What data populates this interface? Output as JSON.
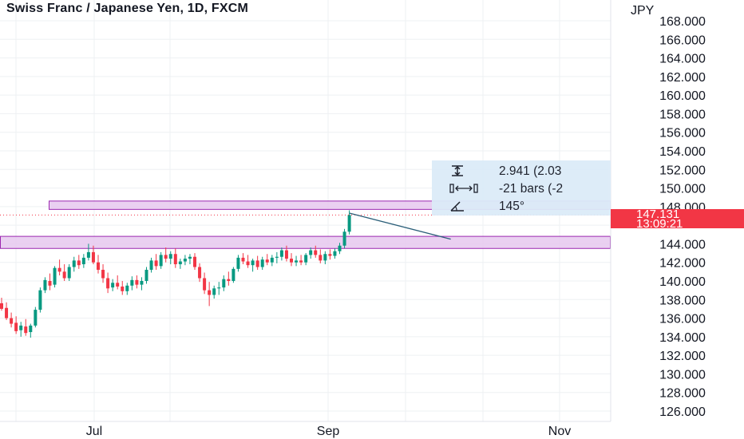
{
  "header": {
    "title": "Swiss Franc / Japanese Yen, 1D, FXCM"
  },
  "price_axis": {
    "currency": "JPY",
    "ticks": [
      "168.000",
      "166.000",
      "164.000",
      "162.000",
      "160.000",
      "158.000",
      "156.000",
      "154.000",
      "152.000",
      "150.000",
      "148.000",
      "144.000",
      "142.000",
      "140.000",
      "138.000",
      "136.000",
      "134.000",
      "132.000",
      "130.000",
      "128.000",
      "126.000"
    ]
  },
  "time_axis": {
    "labels": [
      "Jul",
      "Sep",
      "Nov"
    ]
  },
  "ruler": {
    "price_change": "2.941 (2.03",
    "bars": "-21 bars (-2",
    "angle": "145°"
  },
  "last_price": {
    "price": "147.131",
    "countdown": "13:09:21"
  },
  "colors": {
    "up": "#089981",
    "down": "#f23645",
    "zone_fill": "#e6c8ef",
    "zone_border": "#9c27b0",
    "trendline": "#2a5e78",
    "price_line": "#f23645",
    "grid": "#eef0f3"
  },
  "chart_data": {
    "type": "candlestick",
    "symbol": "CHFJPY",
    "interval": "1D",
    "ylim": [
      125,
      169
    ],
    "zones": [
      {
        "from": 147.7,
        "to": 148.6
      },
      {
        "from": 143.5,
        "to": 144.8
      }
    ],
    "trendline": {
      "from": 147.3,
      "to": 144.5,
      "bars": -21
    },
    "candles": [
      {
        "o": 137.6,
        "h": 138.2,
        "l": 136.8,
        "c": 137.0
      },
      {
        "o": 137.1,
        "h": 137.7,
        "l": 135.8,
        "c": 136.0
      },
      {
        "o": 136.0,
        "h": 136.6,
        "l": 135.0,
        "c": 135.4
      },
      {
        "o": 135.5,
        "h": 136.2,
        "l": 134.3,
        "c": 134.6
      },
      {
        "o": 134.7,
        "h": 135.6,
        "l": 134.0,
        "c": 135.2
      },
      {
        "o": 135.1,
        "h": 135.9,
        "l": 134.1,
        "c": 134.4
      },
      {
        "o": 134.5,
        "h": 135.4,
        "l": 133.9,
        "c": 135.2
      },
      {
        "o": 135.2,
        "h": 137.2,
        "l": 135.0,
        "c": 136.9
      },
      {
        "o": 136.9,
        "h": 139.3,
        "l": 136.6,
        "c": 139.0
      },
      {
        "o": 139.0,
        "h": 140.4,
        "l": 138.7,
        "c": 140.1
      },
      {
        "o": 140.0,
        "h": 140.8,
        "l": 139.0,
        "c": 139.5
      },
      {
        "o": 139.6,
        "h": 141.6,
        "l": 139.3,
        "c": 141.4
      },
      {
        "o": 141.4,
        "h": 142.3,
        "l": 140.6,
        "c": 141.0
      },
      {
        "o": 141.0,
        "h": 141.8,
        "l": 140.0,
        "c": 140.3
      },
      {
        "o": 140.3,
        "h": 141.8,
        "l": 140.0,
        "c": 141.5
      },
      {
        "o": 141.5,
        "h": 142.6,
        "l": 141.0,
        "c": 142.2
      },
      {
        "o": 142.2,
        "h": 142.8,
        "l": 141.3,
        "c": 141.7
      },
      {
        "o": 141.8,
        "h": 142.9,
        "l": 141.4,
        "c": 142.5
      },
      {
        "o": 142.5,
        "h": 144.0,
        "l": 142.2,
        "c": 143.1
      },
      {
        "o": 143.1,
        "h": 143.8,
        "l": 141.8,
        "c": 142.0
      },
      {
        "o": 142.0,
        "h": 142.8,
        "l": 140.8,
        "c": 141.2
      },
      {
        "o": 141.2,
        "h": 141.8,
        "l": 139.8,
        "c": 140.3
      },
      {
        "o": 140.3,
        "h": 140.9,
        "l": 138.7,
        "c": 139.2
      },
      {
        "o": 139.3,
        "h": 140.2,
        "l": 138.9,
        "c": 139.8
      },
      {
        "o": 139.8,
        "h": 140.6,
        "l": 139.1,
        "c": 139.4
      },
      {
        "o": 139.4,
        "h": 140.0,
        "l": 138.5,
        "c": 138.9
      },
      {
        "o": 138.9,
        "h": 139.8,
        "l": 138.5,
        "c": 139.5
      },
      {
        "o": 139.5,
        "h": 140.5,
        "l": 139.0,
        "c": 140.1
      },
      {
        "o": 140.1,
        "h": 140.6,
        "l": 139.2,
        "c": 139.6
      },
      {
        "o": 139.6,
        "h": 140.4,
        "l": 139.0,
        "c": 140.0
      },
      {
        "o": 140.0,
        "h": 141.5,
        "l": 139.7,
        "c": 141.2
      },
      {
        "o": 141.2,
        "h": 142.5,
        "l": 140.9,
        "c": 142.2
      },
      {
        "o": 142.2,
        "h": 142.9,
        "l": 141.2,
        "c": 141.6
      },
      {
        "o": 141.6,
        "h": 143.1,
        "l": 141.3,
        "c": 142.8
      },
      {
        "o": 142.8,
        "h": 143.6,
        "l": 142.0,
        "c": 142.4
      },
      {
        "o": 142.4,
        "h": 143.2,
        "l": 141.8,
        "c": 142.9
      },
      {
        "o": 142.9,
        "h": 143.5,
        "l": 141.4,
        "c": 141.8
      },
      {
        "o": 141.8,
        "h": 142.4,
        "l": 141.3,
        "c": 142.1
      },
      {
        "o": 142.1,
        "h": 142.8,
        "l": 141.7,
        "c": 142.4
      },
      {
        "o": 142.4,
        "h": 142.9,
        "l": 141.8,
        "c": 142.6
      },
      {
        "o": 142.6,
        "h": 143.0,
        "l": 141.2,
        "c": 141.5
      },
      {
        "o": 141.5,
        "h": 141.9,
        "l": 139.9,
        "c": 140.3
      },
      {
        "o": 140.3,
        "h": 140.9,
        "l": 138.6,
        "c": 139.0
      },
      {
        "o": 139.0,
        "h": 139.9,
        "l": 137.3,
        "c": 138.5
      },
      {
        "o": 138.5,
        "h": 139.5,
        "l": 138.1,
        "c": 139.2
      },
      {
        "o": 139.2,
        "h": 139.9,
        "l": 138.5,
        "c": 139.3
      },
      {
        "o": 139.3,
        "h": 140.6,
        "l": 138.9,
        "c": 140.2
      },
      {
        "o": 140.2,
        "h": 141.0,
        "l": 139.5,
        "c": 140.0
      },
      {
        "o": 140.0,
        "h": 141.5,
        "l": 139.8,
        "c": 141.3
      },
      {
        "o": 141.3,
        "h": 142.8,
        "l": 141.0,
        "c": 142.5
      },
      {
        "o": 142.5,
        "h": 143.0,
        "l": 141.8,
        "c": 142.1
      },
      {
        "o": 142.1,
        "h": 142.8,
        "l": 141.4,
        "c": 141.7
      },
      {
        "o": 141.7,
        "h": 142.4,
        "l": 141.0,
        "c": 142.2
      },
      {
        "o": 142.2,
        "h": 142.7,
        "l": 141.2,
        "c": 141.5
      },
      {
        "o": 141.5,
        "h": 142.6,
        "l": 141.2,
        "c": 142.3
      },
      {
        "o": 142.3,
        "h": 142.9,
        "l": 141.7,
        "c": 142.0
      },
      {
        "o": 142.0,
        "h": 142.8,
        "l": 141.6,
        "c": 142.5
      },
      {
        "o": 142.5,
        "h": 143.1,
        "l": 141.9,
        "c": 142.6
      },
      {
        "o": 142.6,
        "h": 143.6,
        "l": 142.2,
        "c": 143.3
      },
      {
        "o": 143.3,
        "h": 143.8,
        "l": 142.1,
        "c": 142.4
      },
      {
        "o": 142.4,
        "h": 143.0,
        "l": 141.6,
        "c": 142.0
      },
      {
        "o": 142.0,
        "h": 142.7,
        "l": 141.6,
        "c": 142.2
      },
      {
        "o": 142.2,
        "h": 142.8,
        "l": 141.7,
        "c": 142.0
      },
      {
        "o": 142.0,
        "h": 143.0,
        "l": 141.7,
        "c": 142.8
      },
      {
        "o": 142.8,
        "h": 143.6,
        "l": 142.4,
        "c": 143.3
      },
      {
        "o": 143.3,
        "h": 143.8,
        "l": 142.5,
        "c": 142.8
      },
      {
        "o": 142.8,
        "h": 143.4,
        "l": 141.9,
        "c": 142.2
      },
      {
        "o": 142.2,
        "h": 143.2,
        "l": 141.8,
        "c": 142.9
      },
      {
        "o": 142.9,
        "h": 143.4,
        "l": 142.3,
        "c": 142.7
      },
      {
        "o": 142.7,
        "h": 143.5,
        "l": 142.4,
        "c": 143.2
      },
      {
        "o": 143.2,
        "h": 144.1,
        "l": 142.9,
        "c": 143.8
      },
      {
        "o": 143.8,
        "h": 145.6,
        "l": 143.5,
        "c": 145.3
      },
      {
        "o": 145.3,
        "h": 147.6,
        "l": 145.0,
        "c": 147.1
      }
    ]
  }
}
